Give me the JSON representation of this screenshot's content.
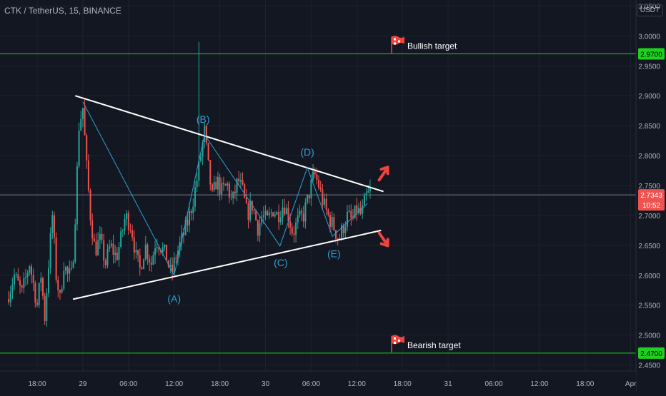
{
  "header": {
    "symbol": "CTK / TetherUS, 15, BINANCE",
    "currency": "USDT"
  },
  "colors": {
    "background": "#131722",
    "up": "#26a69a",
    "down": "#ef5350",
    "trendline": "#ffffff",
    "wave": "#2f9fd4",
    "target_line": "#1fd11f",
    "arrow": "#f0443c"
  },
  "chart_data": {
    "type": "candlestick",
    "ylim": [
      2.44,
      3.06
    ],
    "y_ticks": [
      3.05,
      3.0,
      2.95,
      2.9,
      2.85,
      2.8,
      2.75,
      2.7,
      2.65,
      2.6,
      2.55,
      2.5,
      2.45
    ],
    "y_tick_labels": [
      "3.0500",
      "3.0000",
      "2.9500",
      "2.9000",
      "2.8500",
      "2.8000",
      "2.7500",
      "2.7000",
      "2.6500",
      "2.6000",
      "2.5500",
      "2.5000",
      "2.4500"
    ],
    "x_ticks": [
      {
        "t": 0,
        "label": "18:00"
      },
      {
        "t": 6,
        "label": "29"
      },
      {
        "t": 12,
        "label": "06:00"
      },
      {
        "t": 18,
        "label": "12:00"
      },
      {
        "t": 24,
        "label": "18:00"
      },
      {
        "t": 30,
        "label": "30"
      },
      {
        "t": 36,
        "label": "06:00"
      },
      {
        "t": 42,
        "label": "12:00"
      },
      {
        "t": 48,
        "label": "18:00"
      },
      {
        "t": 54,
        "label": "31"
      },
      {
        "t": 60,
        "label": "06:00"
      },
      {
        "t": 66,
        "label": "12:00"
      },
      {
        "t": 72,
        "label": "18:00"
      },
      {
        "t": 78,
        "label": "Apr"
      }
    ],
    "price_path": [
      [
        -4.0,
        2.56
      ],
      [
        -3.0,
        2.6
      ],
      [
        -2.0,
        2.57
      ],
      [
        -1.0,
        2.62
      ],
      [
        0.0,
        2.55
      ],
      [
        0.5,
        2.6
      ],
      [
        1.0,
        2.53
      ],
      [
        1.5,
        2.62
      ],
      [
        2.0,
        2.7
      ],
      [
        2.5,
        2.6
      ],
      [
        3.0,
        2.56
      ],
      [
        3.5,
        2.62
      ],
      [
        4.0,
        2.6
      ],
      [
        4.6,
        2.6
      ],
      [
        5.0,
        2.7
      ],
      [
        5.5,
        2.85
      ],
      [
        6.0,
        2.88
      ],
      [
        6.5,
        2.78
      ],
      [
        7.0,
        2.7
      ],
      [
        7.6,
        2.64
      ],
      [
        8.2,
        2.66
      ],
      [
        9.0,
        2.62
      ],
      [
        9.6,
        2.65
      ],
      [
        10.4,
        2.63
      ],
      [
        11.0,
        2.66
      ],
      [
        11.6,
        2.7
      ],
      [
        12.4,
        2.68
      ],
      [
        13.0,
        2.63
      ],
      [
        13.5,
        2.61
      ],
      [
        14.2,
        2.65
      ],
      [
        15.0,
        2.62
      ],
      [
        15.6,
        2.66
      ],
      [
        16.2,
        2.65
      ],
      [
        17.0,
        2.63
      ],
      [
        17.6,
        2.6
      ],
      [
        18.2,
        2.63
      ],
      [
        19.0,
        2.66
      ],
      [
        19.8,
        2.69
      ],
      [
        20.4,
        2.72
      ],
      [
        21.0,
        2.76
      ],
      [
        21.5,
        2.8
      ],
      [
        22.0,
        2.84
      ],
      [
        22.5,
        2.78
      ],
      [
        23.0,
        2.73
      ],
      [
        23.6,
        2.76
      ],
      [
        24.2,
        2.74
      ],
      [
        25.0,
        2.75
      ],
      [
        25.6,
        2.72
      ],
      [
        26.4,
        2.76
      ],
      [
        27.0,
        2.74
      ],
      [
        27.6,
        2.7
      ],
      [
        28.2,
        2.72
      ],
      [
        29.0,
        2.68
      ],
      [
        29.6,
        2.7
      ],
      [
        30.2,
        2.69
      ],
      [
        31.0,
        2.71
      ],
      [
        31.6,
        2.7
      ],
      [
        32.4,
        2.72
      ],
      [
        33.0,
        2.7
      ],
      [
        33.6,
        2.67
      ],
      [
        34.2,
        2.69
      ],
      [
        35.0,
        2.7
      ],
      [
        35.8,
        2.74
      ],
      [
        36.4,
        2.77
      ],
      [
        37.0,
        2.75
      ],
      [
        37.6,
        2.72
      ],
      [
        38.2,
        2.7
      ],
      [
        39.0,
        2.68
      ],
      [
        39.6,
        2.66
      ],
      [
        40.2,
        2.68
      ],
      [
        40.8,
        2.7
      ],
      [
        41.4,
        2.69
      ],
      [
        42.0,
        2.71
      ],
      [
        42.6,
        2.7
      ],
      [
        43.2,
        2.73
      ],
      [
        43.8,
        2.74
      ]
    ],
    "spike": {
      "t": 21.2,
      "high": 2.99
    },
    "trendlines": [
      {
        "name": "upper",
        "from": [
          5.0,
          2.9
        ],
        "to": [
          45.5,
          2.74
        ]
      },
      {
        "name": "lower",
        "from": [
          4.7,
          2.56
        ],
        "to": [
          45.2,
          2.675
        ]
      }
    ],
    "wave_path": [
      [
        6.0,
        2.89
      ],
      [
        18.0,
        2.6
      ],
      [
        22.0,
        2.835
      ],
      [
        31.9,
        2.649
      ],
      [
        35.5,
        2.78
      ],
      [
        38.8,
        2.665
      ],
      [
        43.4,
        2.72
      ]
    ],
    "wave_labels": [
      {
        "text": "(A)",
        "t": 18.0,
        "y": 2.555
      },
      {
        "text": "(B)",
        "t": 21.8,
        "y": 2.855
      },
      {
        "text": "(C)",
        "t": 32.0,
        "y": 2.615
      },
      {
        "text": "(D)",
        "t": 35.5,
        "y": 2.8
      },
      {
        "text": "(E)",
        "t": 39.0,
        "y": 2.63
      }
    ],
    "horizontal_levels": [
      {
        "name": "bullish_target",
        "value": 2.97,
        "label": "Bullish target",
        "axis_label": "2.9700"
      },
      {
        "name": "bearish_target",
        "value": 2.47,
        "label": "Bearish target",
        "axis_label": "2.4700"
      }
    ],
    "current_price": {
      "value": 2.7343,
      "label": "2.7343",
      "countdown": "10:52"
    },
    "arrows": [
      {
        "direction": "up",
        "t": 44.0,
        "y": 2.77
      },
      {
        "direction": "down",
        "t": 44.0,
        "y": 2.66
      }
    ]
  }
}
